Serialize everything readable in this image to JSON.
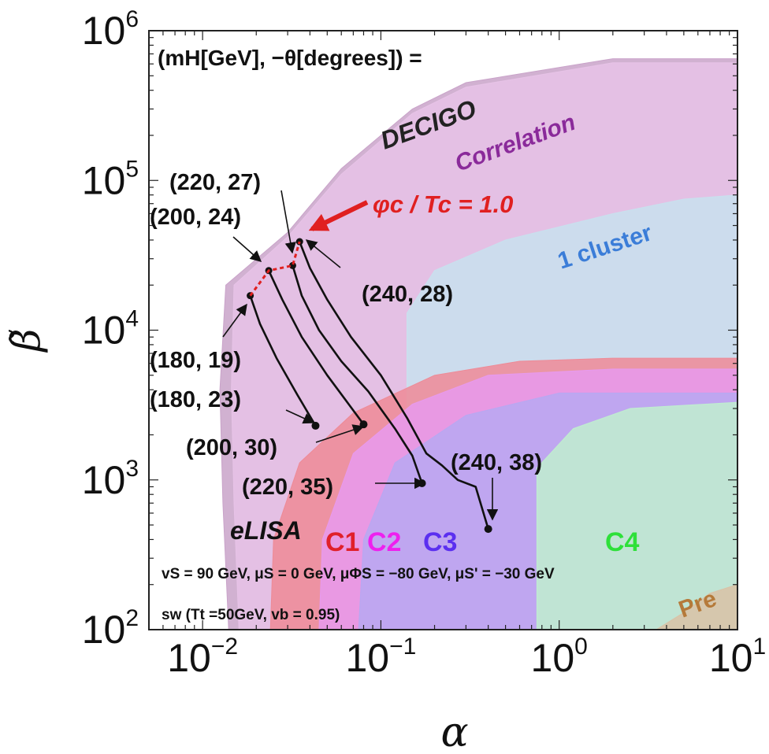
{
  "chart_data": {
    "type": "line",
    "header": "(mH[GeV], −θ[degrees]) =",
    "xlabel": "α",
    "ylabel": "β̃",
    "xscale": "log",
    "yscale": "log",
    "xlim": [
      0.005,
      10
    ],
    "ylim": [
      100,
      1000000
    ],
    "x_ticks": [
      {
        "value": 0.01,
        "base": "10",
        "exp": "−2"
      },
      {
        "value": 0.1,
        "base": "10",
        "exp": "−1"
      },
      {
        "value": 1,
        "base": "10",
        "exp": "0"
      },
      {
        "value": 10,
        "base": "10",
        "exp": "1"
      }
    ],
    "y_ticks": [
      {
        "value": 100,
        "base": "10",
        "exp": "2"
      },
      {
        "value": 1000,
        "base": "10",
        "exp": "3"
      },
      {
        "value": 10000,
        "base": "10",
        "exp": "4"
      },
      {
        "value": 100000,
        "base": "10",
        "exp": "5"
      },
      {
        "value": 1000000,
        "base": "10",
        "exp": "6"
      }
    ],
    "regions": [
      {
        "name": "DECIGO",
        "label": "DECIGO",
        "color": "#c9a3c9",
        "label_color": "#222222",
        "boundary": [
          [
            0.014,
            100
          ],
          [
            0.013,
            700
          ],
          [
            0.0125,
            4000
          ],
          [
            0.0135,
            20000
          ],
          [
            0.03,
            45000
          ],
          [
            0.06,
            120000
          ],
          [
            0.15,
            300000
          ],
          [
            0.3,
            450000
          ],
          [
            2,
            650000
          ],
          [
            10,
            650000
          ],
          [
            10,
            100
          ]
        ]
      },
      {
        "name": "Correlation",
        "label": "Correlation",
        "color": "#e7c3e7",
        "label_color": "#8a2a9a",
        "boundary": [
          [
            0.016,
            100
          ],
          [
            0.015,
            700
          ],
          [
            0.0145,
            4000
          ],
          [
            0.015,
            20000
          ],
          [
            0.03,
            42000
          ],
          [
            0.06,
            110000
          ],
          [
            0.15,
            280000
          ],
          [
            0.3,
            420000
          ],
          [
            2,
            610000
          ],
          [
            10,
            610000
          ],
          [
            10,
            100
          ]
        ]
      },
      {
        "name": "1 cluster",
        "label": "1 cluster",
        "color": "#c8e1ee",
        "label_color": "#3b7dd8",
        "boundary": [
          [
            0.14,
            100
          ],
          [
            0.14,
            13000
          ],
          [
            0.2,
            25000
          ],
          [
            0.5,
            40000
          ],
          [
            2,
            60000
          ],
          [
            5,
            75000
          ],
          [
            10,
            80000
          ],
          [
            10,
            100
          ]
        ]
      },
      {
        "name": "C1",
        "label": "C1",
        "color": "#ee8a96",
        "label_color": "#e0202a",
        "boundary": [
          [
            0.024,
            100
          ],
          [
            0.025,
            400
          ],
          [
            0.035,
            1300
          ],
          [
            0.07,
            2800
          ],
          [
            0.2,
            5000
          ],
          [
            0.6,
            6200
          ],
          [
            2,
            6500
          ],
          [
            10,
            6500
          ],
          [
            10,
            100
          ]
        ]
      },
      {
        "name": "C2",
        "label": "C2",
        "color": "#e79aee",
        "label_color": "#ee20ee",
        "boundary": [
          [
            0.045,
            100
          ],
          [
            0.047,
            400
          ],
          [
            0.07,
            1500
          ],
          [
            0.15,
            3200
          ],
          [
            0.4,
            5000
          ],
          [
            2,
            5500
          ],
          [
            10,
            5500
          ],
          [
            10,
            100
          ]
        ]
      },
      {
        "name": "C3",
        "label": "C3",
        "color": "#b7a8f2",
        "label_color": "#5b2ff0",
        "boundary": [
          [
            0.075,
            100
          ],
          [
            0.08,
            400
          ],
          [
            0.12,
            1300
          ],
          [
            0.3,
            2700
          ],
          [
            1,
            3800
          ],
          [
            10,
            3800
          ],
          [
            10,
            100
          ]
        ]
      },
      {
        "name": "C4",
        "label": "C4",
        "color": "#bfeecf",
        "label_color": "#2ee03a",
        "boundary": [
          [
            0.75,
            100
          ],
          [
            0.75,
            1200
          ],
          [
            1.2,
            2200
          ],
          [
            2.5,
            3000
          ],
          [
            10,
            3300
          ],
          [
            10,
            100
          ]
        ]
      },
      {
        "name": "Pre",
        "label": "Pre",
        "color": "#d9c2a6",
        "label_color": "#b57a3a",
        "boundary": [
          [
            3.5,
            100
          ],
          [
            5,
            130
          ],
          [
            7,
            175
          ],
          [
            10,
            200
          ],
          [
            10,
            100
          ]
        ]
      }
    ],
    "series": [
      {
        "start_label": "(180, 19)",
        "end_label": "(180, 23)",
        "points": [
          [
            0.0185,
            17000
          ],
          [
            0.021,
            11000
          ],
          [
            0.026,
            6500
          ],
          [
            0.034,
            3700
          ],
          [
            0.043,
            2300
          ]
        ]
      },
      {
        "start_label": "(200, 24)",
        "end_label": "(200, 30)",
        "points": [
          [
            0.0235,
            25000
          ],
          [
            0.028,
            16000
          ],
          [
            0.036,
            9000
          ],
          [
            0.05,
            5000
          ],
          [
            0.066,
            3200
          ],
          [
            0.08,
            2350
          ]
        ]
      },
      {
        "start_label": "(220, 27)",
        "end_label": "(220, 35)",
        "points": [
          [
            0.032,
            27000
          ],
          [
            0.036,
            17000
          ],
          [
            0.045,
            10000
          ],
          [
            0.06,
            6200
          ],
          [
            0.085,
            3900
          ],
          [
            0.12,
            2200
          ],
          [
            0.15,
            1450
          ],
          [
            0.17,
            950
          ]
        ]
      },
      {
        "start_label": "(240, 28)",
        "end_label": "(240, 38)",
        "points": [
          [
            0.035,
            39000
          ],
          [
            0.04,
            26000
          ],
          [
            0.05,
            16000
          ],
          [
            0.068,
            9000
          ],
          [
            0.1,
            5000
          ],
          [
            0.14,
            2600
          ],
          [
            0.18,
            1500
          ],
          [
            0.22,
            1250
          ],
          [
            0.27,
            1000
          ],
          [
            0.34,
            900
          ],
          [
            0.4,
            470
          ]
        ]
      }
    ],
    "critical_curve": {
      "label": "φc / Tc = 1.0",
      "color": "#e02020",
      "points": [
        [
          0.0185,
          17000
        ],
        [
          0.0235,
          25000
        ],
        [
          0.032,
          27000
        ],
        [
          0.035,
          39000
        ]
      ]
    },
    "parameters": [
      "vS = 90 GeV,  μS = 0 GeV,  μΦS = −80 GeV,  μS' = −30 GeV",
      "sw (Tt =50GeV, vb = 0.95)"
    ]
  }
}
